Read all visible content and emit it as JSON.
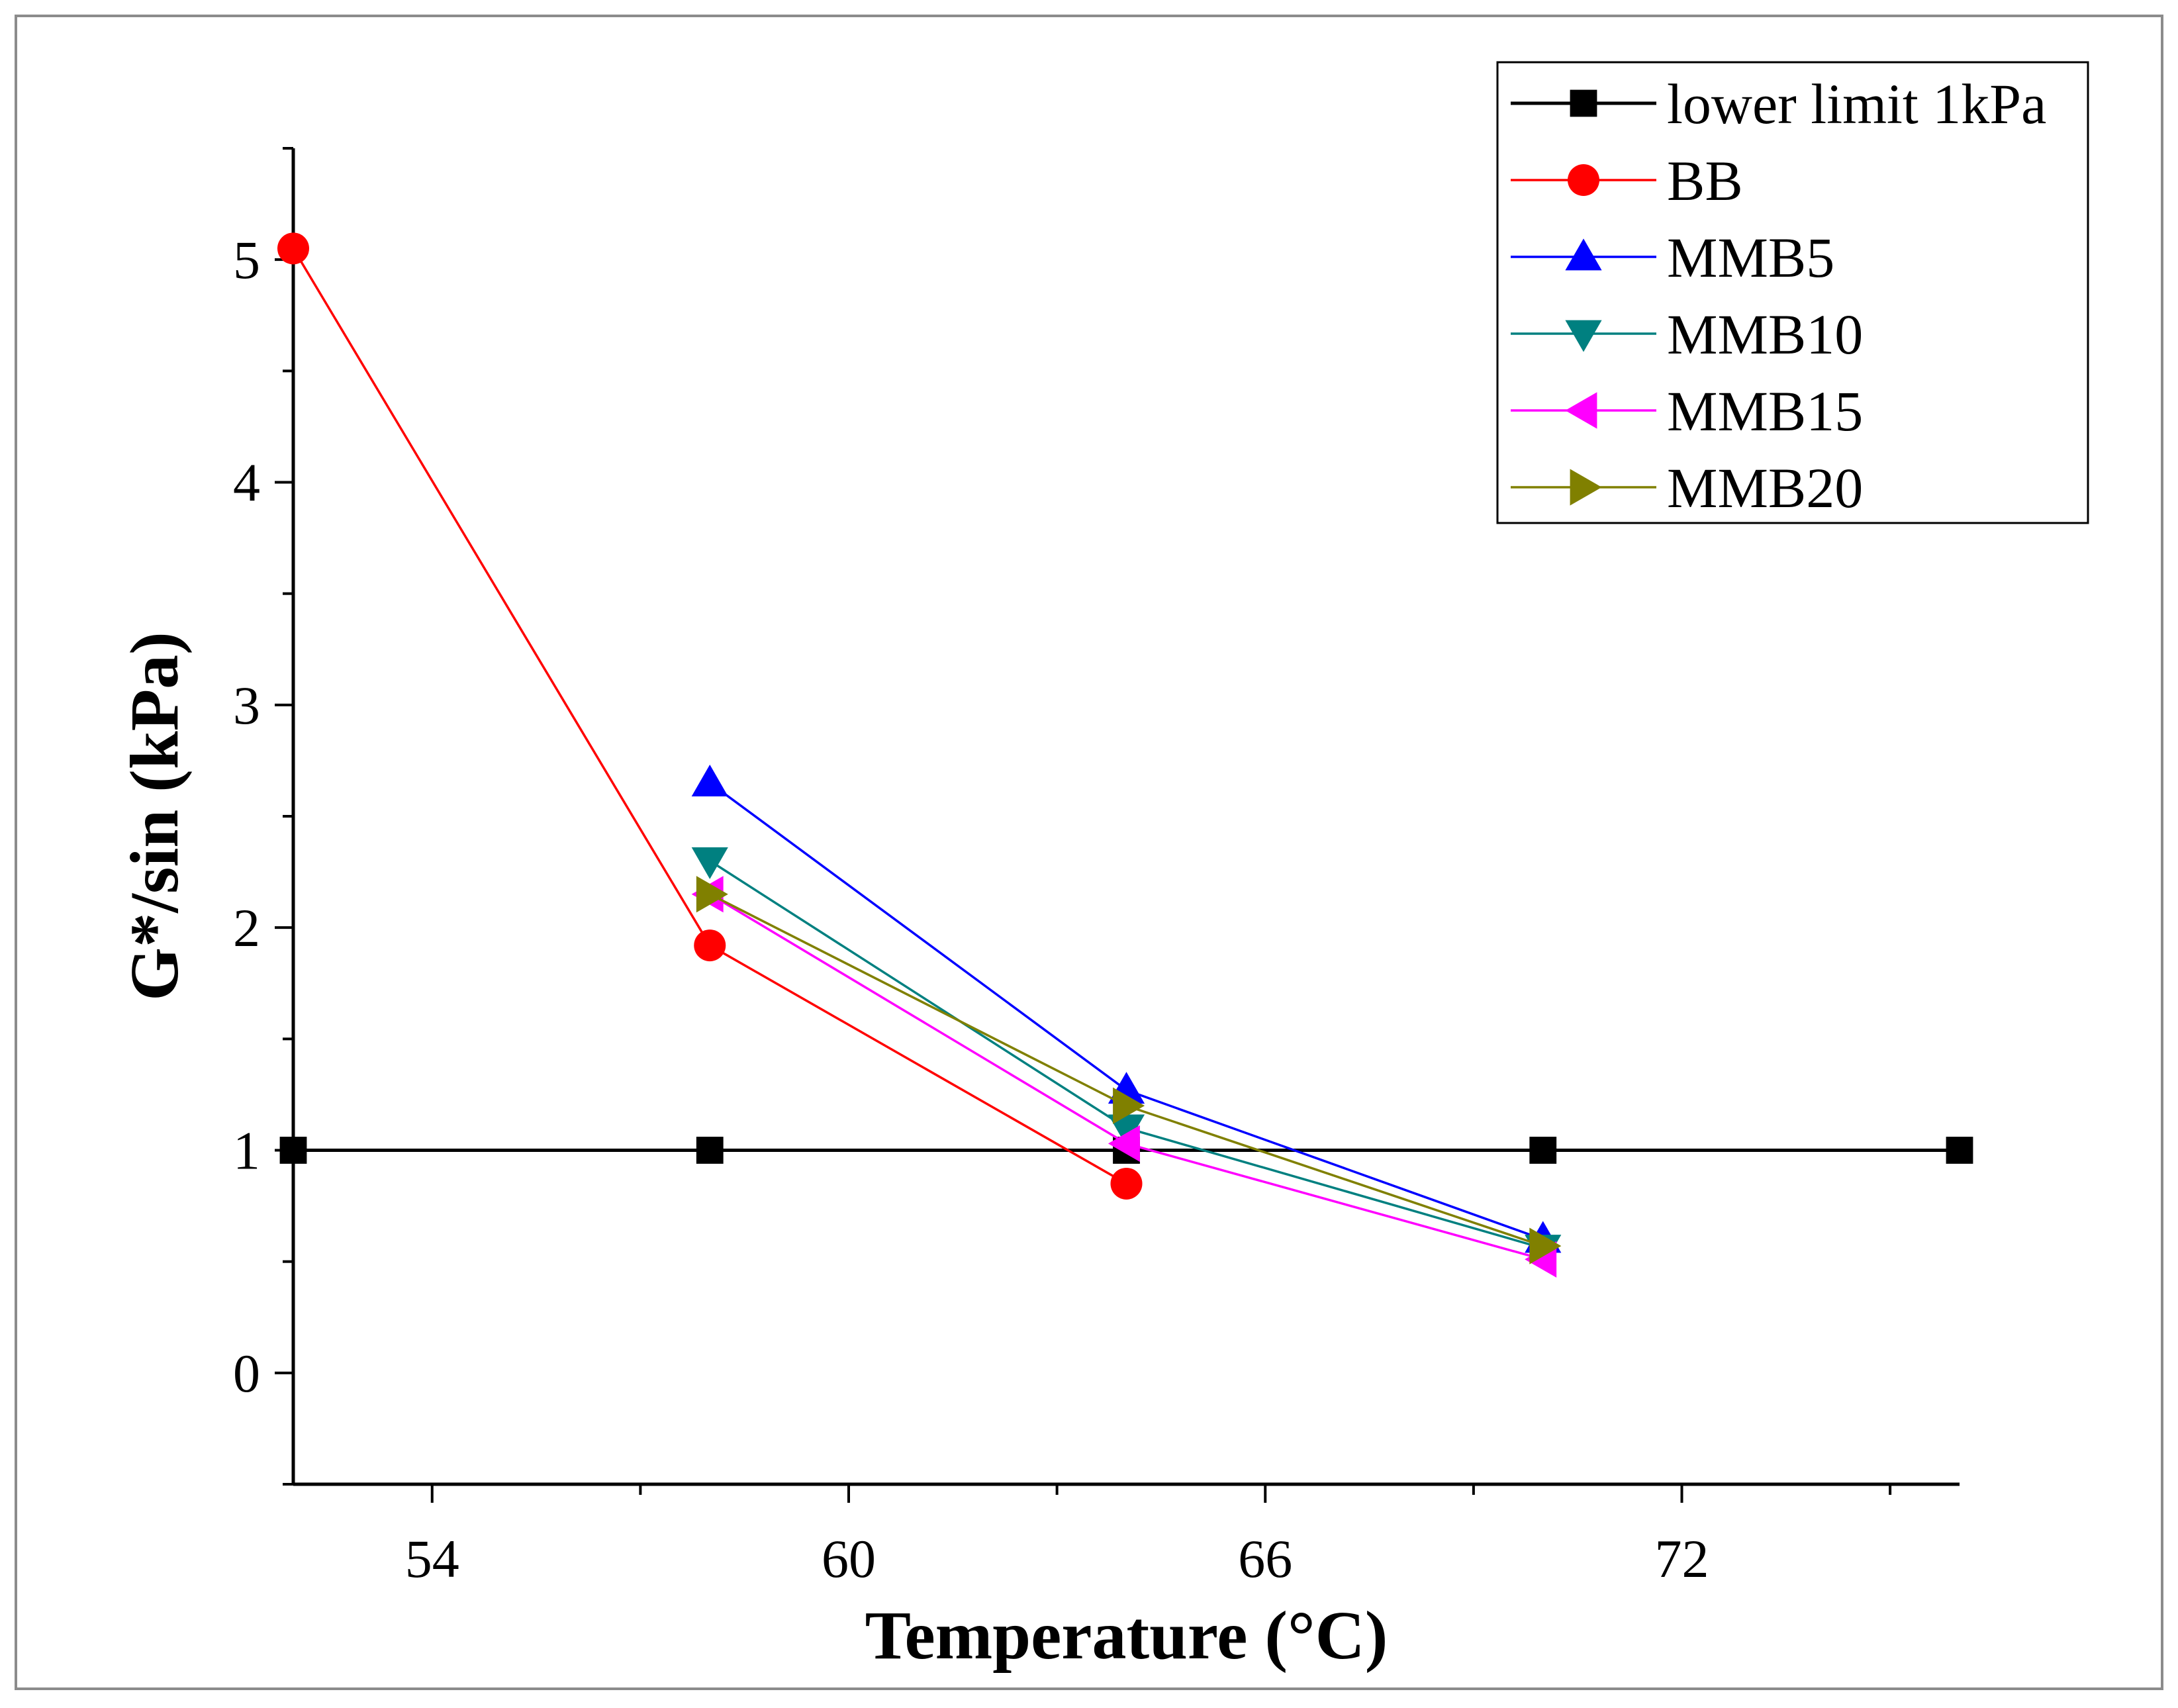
{
  "chart_data": {
    "type": "line",
    "xlabel": "Temperature (°C)",
    "ylabel": "G*/sin (kPa)",
    "xlim": [
      52,
      76
    ],
    "ylim": [
      -0.5,
      5.5
    ],
    "x_ticks": [
      54,
      60,
      66,
      72
    ],
    "y_ticks": [
      0,
      1,
      2,
      3,
      4,
      5
    ],
    "grid": false,
    "legend_position": "top-right",
    "series": [
      {
        "name": "lower limit 1kPa",
        "color": "#000000",
        "marker": "square",
        "x": [
          52,
          58,
          64,
          70,
          76
        ],
        "y": [
          1,
          1,
          1,
          1,
          1
        ]
      },
      {
        "name": "BB",
        "color": "#ff0000",
        "marker": "circle",
        "x": [
          52,
          58,
          64
        ],
        "y": [
          5.05,
          1.92,
          0.85
        ]
      },
      {
        "name": "MMB5",
        "color": "#0000ff",
        "marker": "triangle-up",
        "x": [
          58,
          64,
          70
        ],
        "y": [
          2.65,
          1.27,
          0.6
        ]
      },
      {
        "name": "MMB10",
        "color": "#008080",
        "marker": "triangle-down",
        "x": [
          58,
          64,
          70
        ],
        "y": [
          2.3,
          1.1,
          0.56
        ]
      },
      {
        "name": "MMB15",
        "color": "#ff00ff",
        "marker": "triangle-left",
        "x": [
          58,
          64,
          70
        ],
        "y": [
          2.15,
          1.03,
          0.51
        ]
      },
      {
        "name": "MMB20",
        "color": "#808000",
        "marker": "triangle-right",
        "x": [
          58,
          64,
          70
        ],
        "y": [
          2.15,
          1.2,
          0.57
        ]
      }
    ]
  }
}
